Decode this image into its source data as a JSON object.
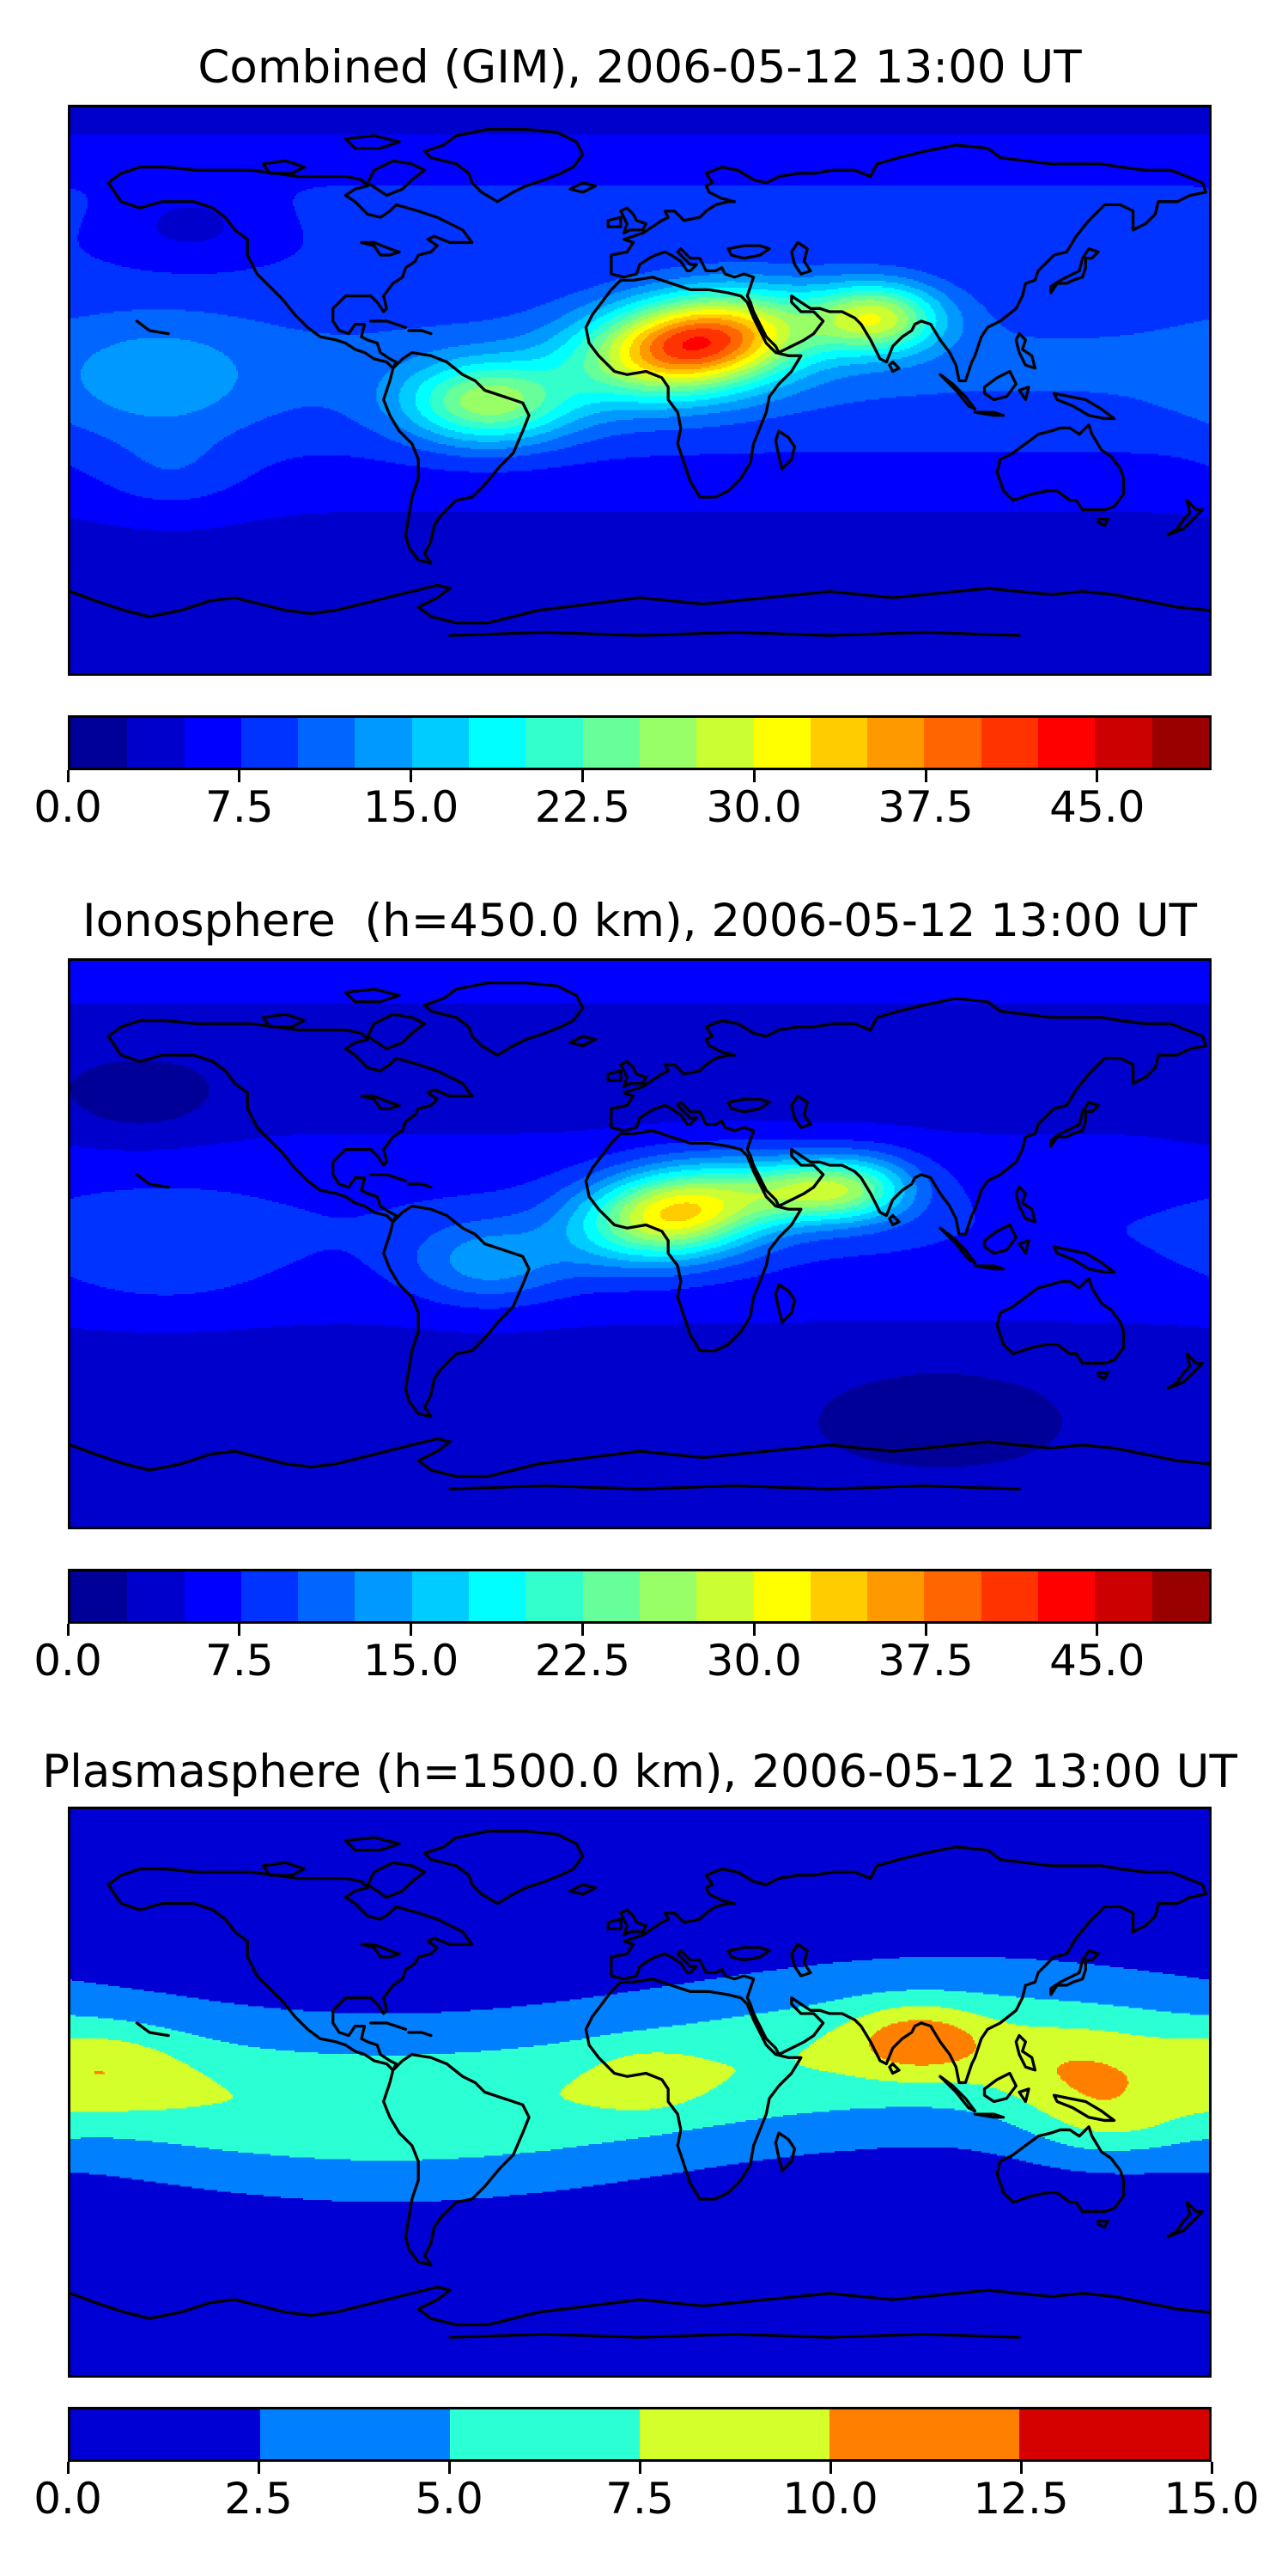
{
  "figure": {
    "background": "#ffffff",
    "text_color": "#000000",
    "coastline_color": "#000000"
  },
  "chart_data": {
    "type": "heatmap",
    "subtype": "filled_contour_world_map",
    "projection": "equirectangular",
    "lon_range": [
      -180,
      180
    ],
    "lat_range": [
      -90,
      90
    ],
    "colormap": "jet",
    "grid": false,
    "panels": [
      {
        "id": "combined-gim",
        "title": "Combined (GIM), 2006-05-12 13:00 UT",
        "colorbar": {
          "orientation": "horizontal",
          "vmin": 0,
          "vmax": 50,
          "level_step": 2.5,
          "n_levels": 20,
          "tick_values": [
            0,
            7.5,
            15,
            22.5,
            30,
            37.5,
            45
          ],
          "tick_labels": [
            "0.0",
            "7.5",
            "15.0",
            "22.5",
            "30.0",
            "37.5",
            "45.0"
          ]
        },
        "peak": {
          "approx_max_value": 43,
          "lon": 18,
          "lat": 15,
          "region": "North Africa"
        },
        "field": {
          "offset": 3.5,
          "lat_terms": [
            {
              "amp": 6.8,
              "lat": 8,
              "sig": 38
            },
            {
              "amp": 3.4,
              "lat": 62,
              "sig": 20
            }
          ],
          "bands": [],
          "blobs": [
            {
              "lon": 18,
              "lat": 15,
              "amp": 33,
              "slon": 34,
              "slat": 15,
              "rot": 8
            },
            {
              "lon": 75,
              "lat": 23,
              "amp": 19,
              "slon": 20,
              "slat": 11,
              "rot": 0
            },
            {
              "lon": -48,
              "lat": -4,
              "amp": 17,
              "slon": 26,
              "slat": 13,
              "rot": 0
            },
            {
              "lon": -152,
              "lat": 3,
              "amp": 4.5,
              "slon": 30,
              "slat": 18,
              "rot": 0
            },
            {
              "lon": -148,
              "lat": -27,
              "amp": 3,
              "slon": 24,
              "slat": 13,
              "rot": 0
            },
            {
              "lon": -142,
              "lat": 53,
              "amp": -3.6,
              "slon": 24,
              "slat": 12,
              "rot": 0
            }
          ]
        }
      },
      {
        "id": "ionosphere",
        "title": "Ionosphere  (h=450.0 km), 2006-05-12 13:00 UT",
        "colorbar": {
          "orientation": "horizontal",
          "vmin": 0,
          "vmax": 50,
          "level_step": 2.5,
          "n_levels": 20,
          "tick_values": [
            0,
            7.5,
            15,
            22.5,
            30,
            37.5,
            45
          ],
          "tick_labels": [
            "0.0",
            "7.5",
            "15.0",
            "22.5",
            "30.0",
            "37.5",
            "45.0"
          ]
        },
        "peak": {
          "approx_max_value": 34,
          "lon": 12,
          "lat": 10,
          "region": "Central Africa"
        },
        "field": {
          "offset": 2.6,
          "lat_terms": [
            {
              "amp": 4.8,
              "lat": 5,
              "sig": 36
            },
            {
              "amp": 3.2,
              "lat": 88,
              "sig": 20
            }
          ],
          "bands": [],
          "blobs": [
            {
              "lon": 12,
              "lat": 10,
              "amp": 26,
              "slon": 30,
              "slat": 14,
              "rot": 8
            },
            {
              "lon": 55,
              "lat": 17,
              "amp": 16,
              "slon": 22,
              "slat": 10,
              "rot": 0
            },
            {
              "lon": 72,
              "lat": 18,
              "amp": 8,
              "slon": 18,
              "slat": 11,
              "rot": 0
            },
            {
              "lon": -48,
              "lat": -6,
              "amp": 7,
              "slon": 24,
              "slat": 13,
              "rot": 0
            },
            {
              "lon": -150,
              "lat": -3,
              "amp": 2.6,
              "slon": 32,
              "slat": 18,
              "rot": 0
            },
            {
              "lon": -158,
              "lat": 45,
              "amp": -2.8,
              "slon": 26,
              "slat": 13,
              "rot": 0
            },
            {
              "lon": 95,
              "lat": -50,
              "amp": -1.5,
              "slon": 35,
              "slat": 14,
              "rot": 0
            }
          ]
        }
      },
      {
        "id": "plasmasphere",
        "title": "Plasmasphere (h=1500.0 km), 2006-05-12 13:00 UT",
        "colorbar": {
          "orientation": "horizontal",
          "vmin": 0,
          "vmax": 15,
          "level_step": 2.5,
          "n_levels": 6,
          "tick_values": [
            0,
            2.5,
            5,
            7.5,
            10,
            12.5,
            15
          ],
          "tick_labels": [
            "0.0",
            "2.5",
            "5.0",
            "7.5",
            "10.0",
            "12.5",
            "15.0"
          ]
        },
        "peak": {
          "approx_max_value": 12,
          "lon": 88,
          "lat": 17,
          "region": "South Asia"
        },
        "field": {
          "offset": 1.2,
          "lat_terms": [],
          "bands": [
            {
              "amp": 6.2,
              "lat0": 4,
              "sig": 24,
              "wave_amp": 9,
              "wave_phase": 10
            }
          ],
          "blobs": [
            {
              "lon": -168,
              "lat": 8,
              "amp": 2.6,
              "slon": 24,
              "slat": 13,
              "rot": 0
            },
            {
              "lon": 2,
              "lat": 4,
              "amp": 2.4,
              "slon": 16,
              "slat": 9,
              "rot": 0
            },
            {
              "lon": 88,
              "lat": 17,
              "amp": 4.8,
              "slon": 21,
              "slat": 11,
              "rot": 0
            },
            {
              "lon": 138,
              "lat": 6,
              "amp": 2.6,
              "slon": 28,
              "slat": 14,
              "rot": 0
            },
            {
              "lon": 148,
              "lat": -10,
              "amp": 3.6,
              "slon": 26,
              "slat": 12,
              "rot": 0
            }
          ]
        }
      }
    ]
  }
}
